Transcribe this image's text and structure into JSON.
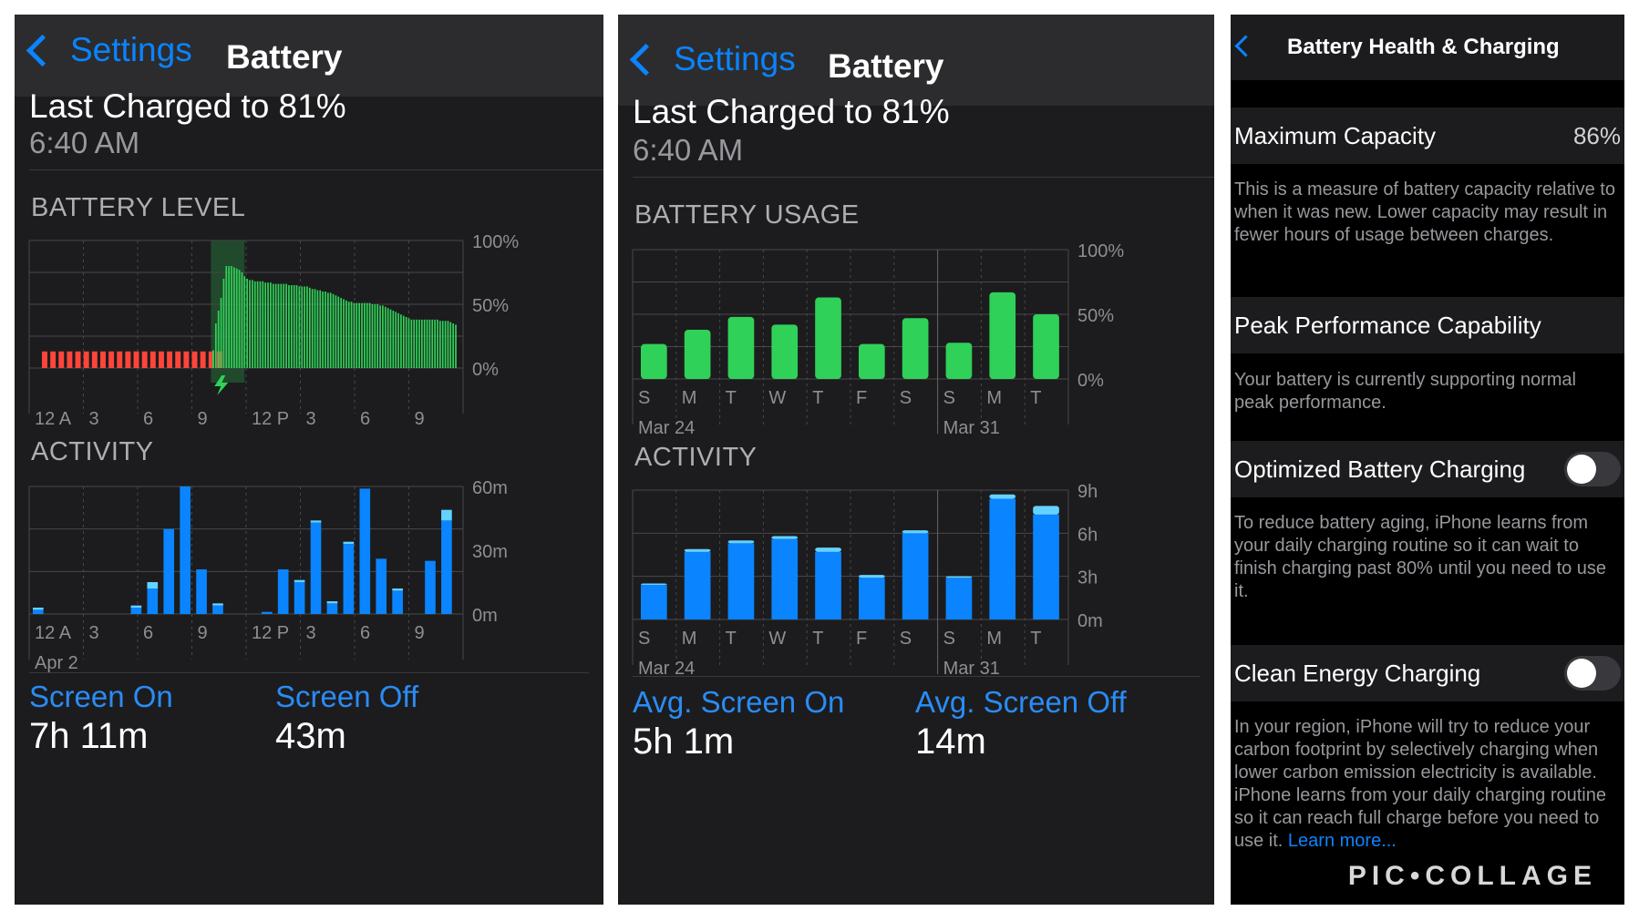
{
  "panel1": {
    "nav_back": "Settings",
    "nav_title": "Battery",
    "last_charged": "Last Charged to 81%",
    "charged_time": "6:40 AM",
    "battery_level_header": "BATTERY LEVEL",
    "activity_header": "ACTIVITY",
    "screen_on_label": "Screen On",
    "screen_on_value": "7h 11m",
    "screen_off_label": "Screen Off",
    "screen_off_value": "43m"
  },
  "panel2": {
    "nav_back": "Settings",
    "nav_title": "Battery",
    "last_charged": "Last Charged to 81%",
    "charged_time": "6:40 AM",
    "battery_usage_header": "BATTERY USAGE",
    "activity_header": "ACTIVITY",
    "avg_screen_on_label": "Avg. Screen On",
    "avg_screen_on_value": "5h 1m",
    "avg_screen_off_label": "Avg. Screen Off",
    "avg_screen_off_value": "14m"
  },
  "panel3": {
    "title": "Battery Health & Charging",
    "max_capacity_label": "Maximum Capacity",
    "max_capacity_value": "86%",
    "max_capacity_note": "This is a measure of battery capacity relative to when it was new. Lower capacity may result in fewer hours of usage between charges.",
    "peak_label": "Peak Performance Capability",
    "peak_note": "Your battery is currently supporting normal peak performance.",
    "optimized_label": "Optimized Battery Charging",
    "optimized_on": false,
    "optimized_note": "To reduce battery aging, iPhone learns from your daily charging routine so it can wait to finish charging past 80% until you need to use it.",
    "clean_label": "Clean Energy Charging",
    "clean_on": false,
    "clean_note": "In your region, iPhone will try to reduce your carbon footprint by selectively charging when lower carbon emission electricity is available. iPhone learns from your daily charging routine so it can reach full charge before you need to use it.",
    "learn_more": "Learn more...",
    "watermark": "PIC•COLLAGE"
  },
  "chart_data": [
    {
      "type": "bar",
      "name": "battery-level",
      "ylim": [
        0,
        100
      ],
      "y_ticks": [
        "100%",
        "50%",
        "0%"
      ],
      "x_ticks": [
        "12 A",
        "3",
        "6",
        "9",
        "12 P",
        "3",
        "6",
        "9"
      ],
      "low_values": [
        13,
        13,
        13,
        13,
        13,
        13,
        13,
        13,
        13,
        13,
        13,
        13,
        13,
        13,
        13,
        13,
        13,
        13,
        13,
        13,
        13,
        13
      ],
      "values": [
        14,
        35,
        45,
        55,
        70,
        80,
        80,
        80,
        79,
        78,
        77,
        75,
        72,
        70,
        69,
        69,
        68,
        68,
        68,
        68,
        67,
        67,
        67,
        66,
        66,
        66,
        66,
        66,
        66,
        65,
        65,
        65,
        65,
        64,
        64,
        64,
        64,
        63,
        62,
        62,
        61,
        61,
        60,
        60,
        59,
        59,
        58,
        57,
        56,
        55,
        54,
        53,
        52,
        52,
        51,
        51,
        51,
        51,
        51,
        51,
        51,
        50,
        50,
        50,
        49,
        49,
        48,
        47,
        46,
        45,
        44,
        43,
        42,
        41,
        40,
        39,
        38,
        38,
        38,
        38,
        38,
        38,
        38,
        38,
        38,
        38,
        38,
        37,
        37,
        37,
        37,
        36,
        35,
        34
      ],
      "charging_color": "#30d158",
      "low_color": "#ff453a"
    },
    {
      "type": "bar",
      "name": "activity-day",
      "ylim": [
        0,
        60
      ],
      "y_ticks": [
        "60m",
        "30m",
        "0m"
      ],
      "x_ticks": [
        "12 A",
        "3",
        "6",
        "9",
        "12 P",
        "3",
        "6",
        "9"
      ],
      "date_label": "Apr 2",
      "screen_on": [
        2,
        0,
        0,
        0,
        0,
        0,
        3,
        12,
        40,
        60,
        21,
        4,
        0,
        0,
        1,
        21,
        15,
        43,
        5,
        33,
        59,
        26,
        11,
        0,
        25,
        44
      ],
      "screen_off": [
        1,
        0,
        0,
        0,
        0,
        0,
        1,
        3,
        0,
        0,
        0,
        1,
        0,
        0,
        0,
        0,
        1,
        1,
        1,
        1,
        0,
        0,
        1,
        0,
        0,
        5
      ]
    },
    {
      "type": "bar",
      "name": "battery-usage-week",
      "ylim": [
        0,
        100
      ],
      "y_ticks": [
        "100%",
        "50%",
        "0%"
      ],
      "categories": [
        "S",
        "M",
        "T",
        "W",
        "T",
        "F",
        "S",
        "S",
        "M",
        "T"
      ],
      "date_labels": [
        "Mar 24",
        "Mar 31"
      ],
      "values": [
        27,
        38,
        48,
        42,
        63,
        27,
        47,
        28,
        67,
        50
      ]
    },
    {
      "type": "bar",
      "name": "activity-week",
      "ylim": [
        0,
        9
      ],
      "y_ticks": [
        "9h",
        "6h",
        "3h",
        "0m"
      ],
      "categories": [
        "S",
        "M",
        "T",
        "W",
        "T",
        "F",
        "S",
        "S",
        "M",
        "T"
      ],
      "date_labels": [
        "Mar 24",
        "Mar 31"
      ],
      "screen_on": [
        2.4,
        4.7,
        5.3,
        5.6,
        4.7,
        2.9,
        6.0,
        2.9,
        8.4,
        7.3
      ],
      "screen_off": [
        0.1,
        0.2,
        0.2,
        0.2,
        0.3,
        0.2,
        0.2,
        0.1,
        0.3,
        0.6
      ]
    }
  ],
  "colors": {
    "accent": "#0a84ff",
    "green": "#30d158",
    "red": "#ff453a",
    "screen_on_blue": "#0a84ff",
    "screen_off_blue": "#64d2ff"
  }
}
